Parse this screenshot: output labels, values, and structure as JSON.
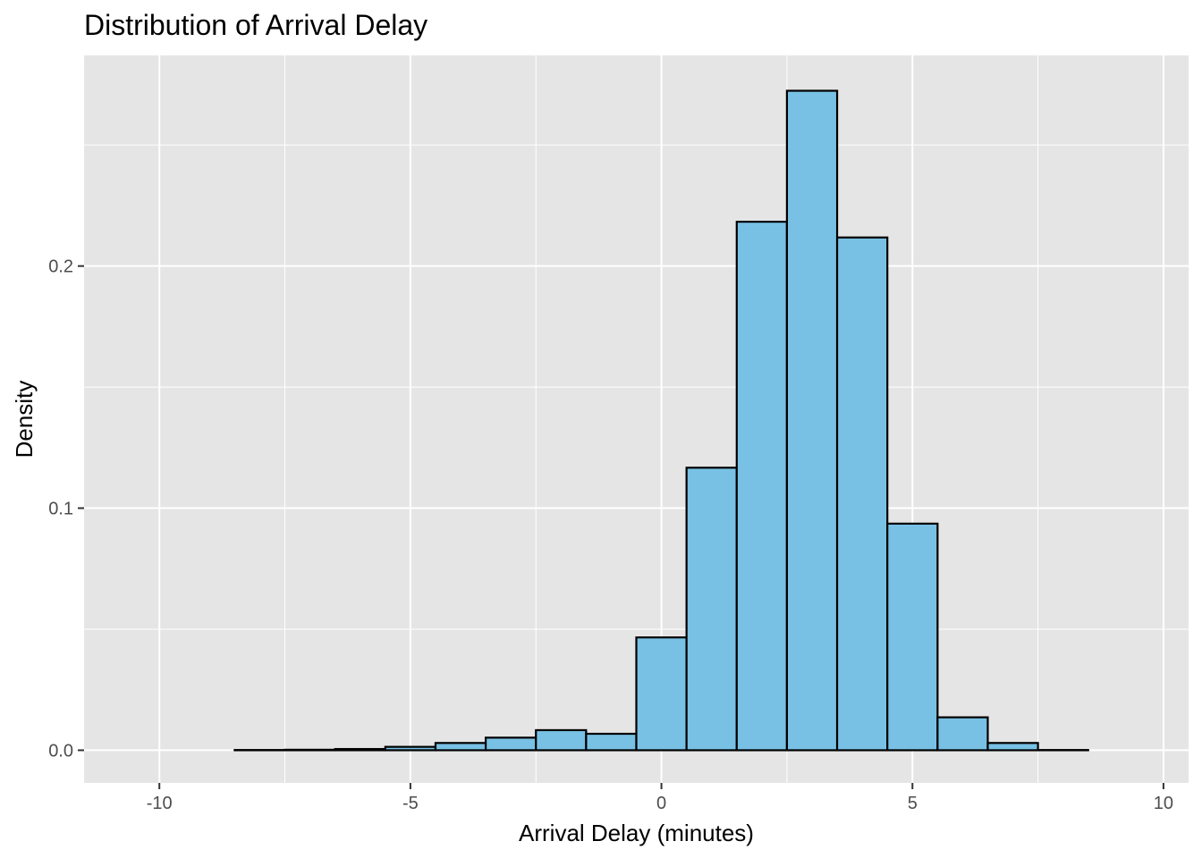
{
  "chart_data": {
    "type": "bar",
    "title": "Distribution of Arrival Delay",
    "xlabel": "Arrival Delay (minutes)",
    "ylabel": "Density",
    "xlim": [
      -11.5,
      10.5
    ],
    "ylim": [
      -0.0135,
      0.287
    ],
    "x_ticks": [
      -10,
      -5,
      0,
      5,
      10
    ],
    "x_tick_labels": [
      "-10",
      "-5",
      "0",
      "5",
      "10"
    ],
    "y_ticks": [
      0.0,
      0.1,
      0.2
    ],
    "y_tick_labels": [
      "0.0",
      "0.1",
      "0.2"
    ],
    "x_minor_ticks": [
      -7.5,
      -2.5,
      2.5,
      7.5
    ],
    "y_minor_ticks": [
      0.05,
      0.15,
      0.25
    ],
    "grid": true,
    "legend": "none",
    "bin_width": 1,
    "bins": [
      {
        "center": -10,
        "value": 0.0
      },
      {
        "center": -9,
        "value": 0.0
      },
      {
        "center": -8,
        "value": 0.0001
      },
      {
        "center": -7,
        "value": 0.0002
      },
      {
        "center": -6,
        "value": 0.0005
      },
      {
        "center": -5,
        "value": 0.0014
      },
      {
        "center": -4,
        "value": 0.003
      },
      {
        "center": -3,
        "value": 0.0052
      },
      {
        "center": -2,
        "value": 0.0083
      },
      {
        "center": -1,
        "value": 0.0068
      },
      {
        "center": 0,
        "value": 0.0466
      },
      {
        "center": 1,
        "value": 0.1167
      },
      {
        "center": 2,
        "value": 0.2183
      },
      {
        "center": 3,
        "value": 0.2724
      },
      {
        "center": 4,
        "value": 0.2118
      },
      {
        "center": 5,
        "value": 0.0936
      },
      {
        "center": 6,
        "value": 0.0136
      },
      {
        "center": 7,
        "value": 0.003
      },
      {
        "center": 8,
        "value": 0.0001
      },
      {
        "center": 9,
        "value": 0.0
      }
    ],
    "colors": {
      "bar_fill": "#78c1e4",
      "bar_stroke": "#000000",
      "panel_bg": "#e5e5e5",
      "grid": "#ffffff",
      "tick_label": "#4d4d4d",
      "tick_mark": "#333333"
    }
  }
}
